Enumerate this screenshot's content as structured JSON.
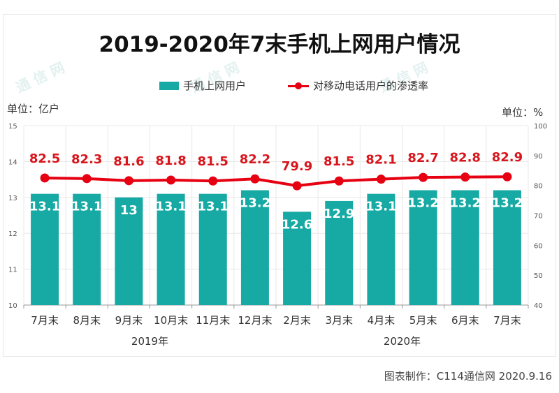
{
  "chart_data": {
    "type": "bar",
    "title": "2019-2020年7末手机上网用户情况",
    "categories": [
      "7月末",
      "8月末",
      "9月末",
      "10月末",
      "11月末",
      "12月末",
      "2月末",
      "3月末",
      "4月末",
      "5月末",
      "6月末",
      "7月末"
    ],
    "year_groups": [
      {
        "label": "2019年",
        "from": 0,
        "to": 5
      },
      {
        "label": "2020年",
        "from": 6,
        "to": 11
      }
    ],
    "series": [
      {
        "name": "手机上网用户",
        "type": "bar",
        "axis": "left",
        "color": "#17a9a3",
        "values": [
          13.1,
          13.1,
          13,
          13.1,
          13.1,
          13.2,
          12.6,
          12.9,
          13.1,
          13.2,
          13.2,
          13.2
        ],
        "labels": [
          "13.1",
          "13.1",
          "13",
          "13.1",
          "13.1",
          "13.2",
          "12.6",
          "12.9",
          "13.1",
          "13.2",
          "13.2",
          "13.2"
        ]
      },
      {
        "name": "对移动电话用户的渗透率",
        "type": "line",
        "axis": "right",
        "color": "#e60012",
        "values": [
          82.5,
          82.3,
          81.6,
          81.8,
          81.5,
          82.2,
          79.9,
          81.5,
          82.1,
          82.7,
          82.8,
          82.9
        ],
        "labels": [
          "82.5",
          "82.3",
          "81.6",
          "81.8",
          "81.5",
          "82.2",
          "79.9",
          "81.5",
          "82.1",
          "82.7",
          "82.8",
          "82.9"
        ]
      }
    ],
    "y_left": {
      "label": "单位：亿户",
      "min": 10,
      "max": 15,
      "ticks": [
        "10",
        "11",
        "12",
        "13",
        "14",
        "15"
      ]
    },
    "y_right": {
      "label": "单位：%",
      "min": 40,
      "max": 100,
      "ticks": [
        "40",
        "50",
        "60",
        "70",
        "80",
        "90",
        "100"
      ]
    },
    "grid": true,
    "legend_position": "top-center"
  },
  "footer": "图表制作：C114通信网  2020.9.16",
  "watermark": {
    "text": "通 信 网",
    "logo": "C114"
  }
}
